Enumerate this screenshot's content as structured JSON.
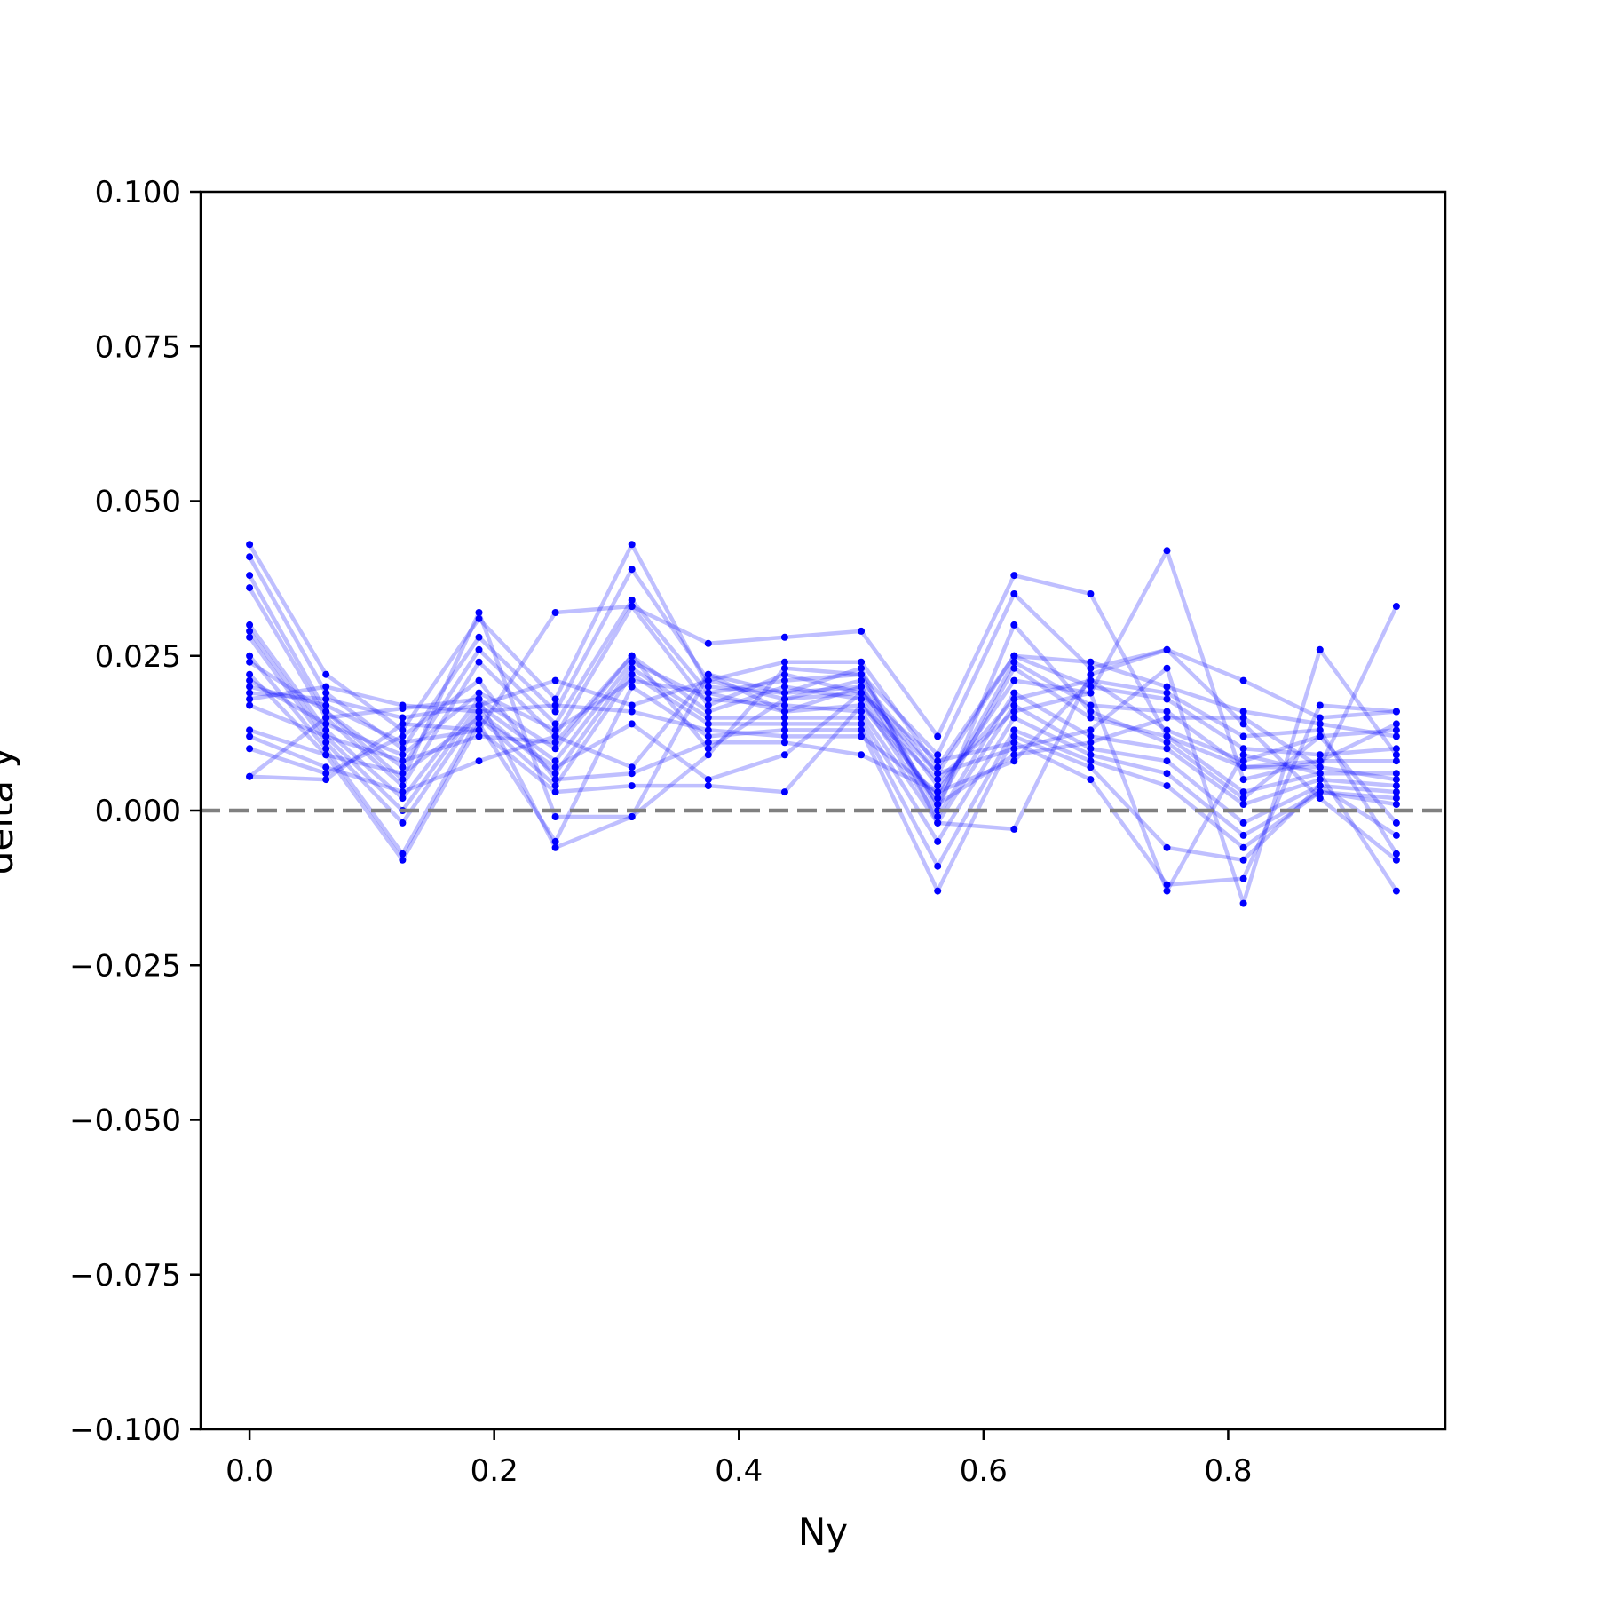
{
  "chart_data": {
    "type": "line",
    "xlabel": "Ny",
    "ylabel": "delta y",
    "xlim": [
      -0.04,
      0.9775
    ],
    "ylim": [
      -0.1,
      0.1
    ],
    "xticks": [
      0.0,
      0.2,
      0.4,
      0.6,
      0.8
    ],
    "xtick_labels": [
      "0.0",
      "0.2",
      "0.4",
      "0.6",
      "0.8"
    ],
    "yticks": [
      -0.1,
      -0.075,
      -0.05,
      -0.025,
      0.0,
      0.025,
      0.05,
      0.075,
      0.1
    ],
    "ytick_labels": [
      "−0.100",
      "−0.075",
      "−0.050",
      "−0.025",
      "0.000",
      "0.025",
      "0.050",
      "0.075",
      "0.100"
    ],
    "grid": false,
    "reference_line": {
      "y": 0.0,
      "style": "dashed",
      "color": "#808080"
    },
    "line_color": "#0000ff",
    "line_opacity": 0.25,
    "marker_color": "#0000ff",
    "x": [
      0.0,
      0.0625,
      0.125,
      0.1875,
      0.25,
      0.3125,
      0.375,
      0.4375,
      0.5,
      0.5625,
      0.625,
      0.6875,
      0.75,
      0.8125,
      0.875,
      0.9375
    ],
    "series": [
      {
        "values": [
          0.043,
          0.022,
          0.013,
          0.031,
          0.018,
          0.043,
          0.02,
          0.019,
          0.02,
          0.004,
          0.018,
          0.021,
          0.013,
          0.008,
          0.012,
          0.013
        ]
      },
      {
        "values": [
          0.041,
          0.019,
          0.01,
          0.028,
          0.016,
          0.039,
          0.021,
          0.018,
          0.021,
          0.006,
          0.025,
          0.02,
          0.018,
          0.01,
          0.009,
          0.01
        ]
      },
      {
        "values": [
          0.038,
          0.016,
          0.007,
          0.026,
          0.014,
          0.034,
          0.019,
          0.016,
          0.017,
          0.002,
          0.024,
          0.017,
          0.016,
          0.007,
          0.008,
          0.008
        ]
      },
      {
        "values": [
          0.036,
          0.015,
          0.004,
          0.024,
          0.012,
          0.033,
          0.017,
          0.022,
          0.019,
          0.001,
          0.023,
          0.015,
          0.012,
          0.003,
          0.006,
          0.006
        ]
      },
      {
        "values": [
          0.03,
          0.013,
          0.002,
          0.018,
          0.01,
          0.025,
          0.016,
          0.02,
          0.018,
          -0.001,
          0.019,
          0.012,
          0.01,
          0.001,
          0.005,
          0.004
        ]
      },
      {
        "values": [
          0.029,
          0.012,
          0.0,
          0.017,
          0.008,
          0.024,
          0.018,
          0.017,
          0.016,
          -0.002,
          0.017,
          0.01,
          0.008,
          -0.002,
          0.004,
          0.003
        ]
      },
      {
        "values": [
          0.028,
          0.011,
          -0.002,
          0.016,
          0.006,
          0.023,
          0.015,
          0.015,
          0.015,
          -0.005,
          0.015,
          0.009,
          0.006,
          -0.004,
          0.003,
          0.002
        ]
      },
      {
        "values": [
          0.025,
          0.01,
          -0.007,
          0.015,
          0.004,
          0.022,
          0.014,
          0.014,
          0.014,
          -0.009,
          0.013,
          0.008,
          0.004,
          -0.006,
          0.003,
          0.001
        ]
      },
      {
        "values": [
          0.022,
          0.009,
          -0.008,
          0.014,
          -0.005,
          0.02,
          0.012,
          0.013,
          0.013,
          -0.013,
          0.012,
          0.007,
          -0.006,
          -0.008,
          0.004,
          -0.004
        ]
      },
      {
        "values": [
          0.021,
          0.014,
          0.009,
          0.019,
          0.013,
          0.021,
          0.019,
          0.021,
          0.022,
          0.009,
          0.035,
          0.023,
          0.026,
          0.021,
          0.015,
          0.016
        ]
      },
      {
        "values": [
          0.02,
          0.017,
          0.011,
          0.013,
          0.032,
          0.033,
          0.027,
          0.028,
          0.029,
          0.012,
          0.038,
          0.035,
          0.012,
          0.007,
          0.007,
          0.005
        ]
      },
      {
        "values": [
          0.019,
          0.018,
          0.015,
          0.017,
          0.021,
          0.017,
          0.021,
          0.024,
          0.024,
          0.007,
          0.025,
          0.024,
          0.02,
          0.016,
          0.014,
          0.012
        ]
      },
      {
        "values": [
          0.018,
          0.02,
          0.017,
          0.016,
          0.017,
          0.016,
          0.013,
          0.012,
          0.012,
          0.003,
          0.021,
          0.019,
          0.042,
          0.005,
          0.008,
          0.014
        ]
      },
      {
        "values": [
          0.017,
          0.012,
          0.008,
          0.012,
          0.011,
          0.025,
          0.01,
          0.018,
          0.019,
          0.006,
          0.01,
          0.013,
          0.023,
          -0.015,
          0.026,
          0.009
        ]
      },
      {
        "values": [
          0.013,
          0.009,
          0.006,
          0.015,
          0.007,
          0.014,
          0.005,
          0.009,
          0.019,
          0.008,
          0.011,
          0.005,
          -0.012,
          -0.011,
          0.017,
          0.016
        ]
      },
      {
        "values": [
          0.012,
          0.007,
          0.003,
          0.008,
          0.012,
          0.007,
          0.022,
          0.016,
          0.02,
          0.001,
          0.009,
          0.011,
          0.015,
          0.015,
          0.007,
          0.033
        ]
      },
      {
        "values": [
          0.01,
          0.006,
          0.012,
          0.021,
          0.005,
          0.006,
          0.011,
          0.011,
          0.009,
          0.003,
          0.008,
          0.021,
          0.019,
          0.012,
          0.013,
          -0.007
        ]
      },
      {
        "values": [
          0.0055,
          0.005,
          0.014,
          0.013,
          0.003,
          0.004,
          0.004,
          0.003,
          0.017,
          0.005,
          0.016,
          0.019,
          -0.013,
          0.009,
          0.006,
          -0.013
        ]
      },
      {
        "values": [
          0.0055,
          0.015,
          0.0165,
          0.018,
          -0.006,
          -0.001,
          0.022,
          0.019,
          0.023,
          -0.002,
          -0.003,
          0.022,
          0.026,
          0.014,
          0.002,
          -0.008
        ]
      },
      {
        "values": [
          0.024,
          0.016,
          0.005,
          0.032,
          -0.001,
          -0.001,
          0.009,
          0.023,
          0.022,
          0.0,
          0.03,
          0.016,
          0.011,
          0.002,
          0.012,
          -0.002
        ]
      }
    ]
  }
}
